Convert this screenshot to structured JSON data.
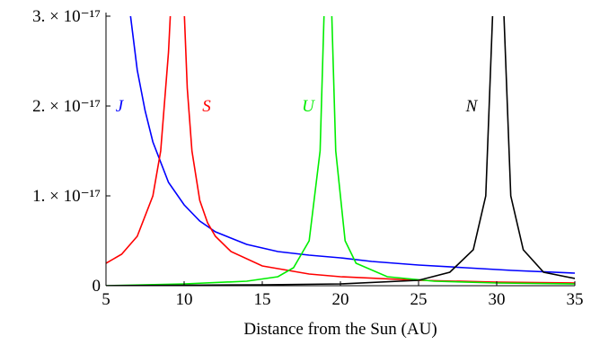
{
  "chart_data": {
    "type": "line",
    "xlabel": "Distance from the Sun (AU)",
    "xlim": [
      5,
      35
    ],
    "xticks": [
      5,
      10,
      15,
      20,
      25,
      30,
      35
    ],
    "ylim": [
      0,
      3e-17
    ],
    "yticks": [
      0,
      {
        "value": 1e-17,
        "label": "1. × 10⁻¹⁷"
      },
      {
        "value": 2e-17,
        "label": "2. × 10⁻¹⁷"
      },
      {
        "value": 3e-17,
        "label": "3. × 10⁻¹⁷"
      }
    ],
    "series": [
      {
        "name": "J",
        "color": "#0000ff",
        "x": [
          6.5,
          7,
          7.5,
          8,
          9,
          10,
          11,
          12,
          14,
          16,
          18,
          20,
          22,
          25,
          28,
          31,
          35
        ],
        "values": [
          3.1e-17,
          2.4e-17,
          1.95e-17,
          1.6e-17,
          1.15e-17,
          9e-18,
          7.2e-18,
          6e-18,
          4.6e-18,
          3.8e-18,
          3.4e-18,
          3.1e-18,
          2.7e-18,
          2.3e-18,
          2e-18,
          1.7e-18,
          1.4e-18
        ]
      },
      {
        "name": "S",
        "color": "#ff0000",
        "x": [
          5,
          6,
          7,
          8,
          8.5,
          9,
          9.2,
          9.6,
          9.95,
          10.2,
          10.5,
          11,
          11.5,
          12,
          13,
          15,
          18,
          20,
          25,
          30,
          35
        ],
        "values": [
          2.5e-18,
          3.5e-18,
          5.5e-18,
          1e-17,
          1.5e-17,
          2.6e-17,
          3.3e-17,
          null,
          3.3e-17,
          2.2e-17,
          1.5e-17,
          9.5e-18,
          7e-18,
          5.5e-18,
          3.8e-18,
          2.2e-18,
          1.3e-18,
          1e-18,
          6e-19,
          4e-19,
          3e-19
        ]
      },
      {
        "name": "U",
        "color": "#00ee00",
        "x": [
          5,
          10,
          14,
          16,
          17,
          18,
          18.7,
          19,
          19.2,
          19.4,
          19.7,
          20.3,
          21,
          23,
          26,
          30,
          35
        ],
        "values": [
          0,
          2e-19,
          5e-19,
          1e-18,
          2e-18,
          5e-18,
          1.5e-17,
          3.3e-17,
          null,
          3.3e-17,
          1.5e-17,
          5e-18,
          2.5e-18,
          1e-18,
          5e-19,
          3e-19,
          2e-19
        ]
      },
      {
        "name": "N",
        "color": "#000000",
        "x": [
          5,
          15,
          20,
          25,
          27,
          28.5,
          29.3,
          29.8,
          30.1,
          30.4,
          30.9,
          31.7,
          33,
          35
        ],
        "values": [
          0,
          1e-19,
          2e-19,
          6e-19,
          1.5e-18,
          4e-18,
          1e-17,
          3.3e-17,
          null,
          3.3e-17,
          1e-17,
          4e-18,
          1.5e-18,
          8e-19
        ]
      }
    ]
  }
}
